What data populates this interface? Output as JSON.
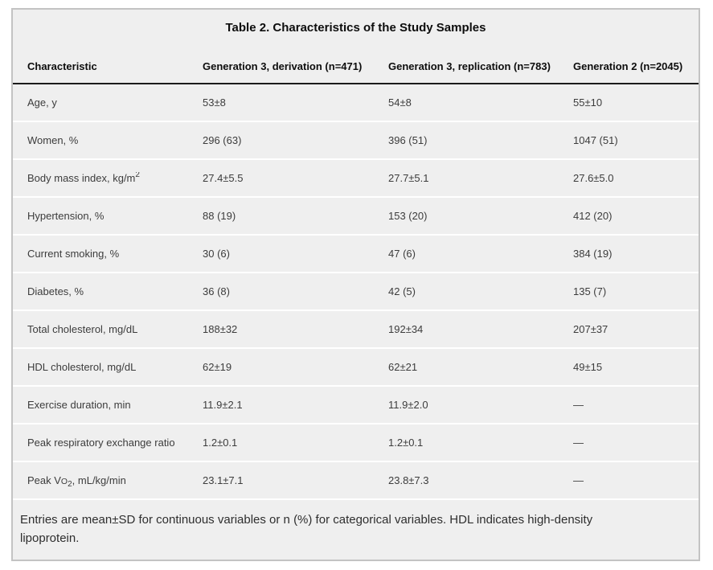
{
  "table": {
    "title": "Table 2. Characteristics of the Study Samples",
    "columns": [
      "Characteristic",
      "Generation 3, derivation (n=471)",
      "Generation 3, replication (n=783)",
      "Generation 2 (n=2045)"
    ],
    "rows": [
      {
        "label": [
          {
            "text": "Age, y"
          }
        ],
        "values": [
          "53±8",
          "54±8",
          "55±10"
        ]
      },
      {
        "label": [
          {
            "text": "Women, %"
          }
        ],
        "values": [
          "296 (63)",
          "396 (51)",
          "1047 (51)"
        ]
      },
      {
        "label": [
          {
            "text": "Body mass index, kg/m"
          },
          {
            "text": "2",
            "format": "sup"
          }
        ],
        "values": [
          "27.4±5.5",
          "27.7±5.1",
          "27.6±5.0"
        ]
      },
      {
        "label": [
          {
            "text": "Hypertension, %"
          }
        ],
        "values": [
          "88 (19)",
          "153 (20)",
          "412 (20)"
        ]
      },
      {
        "label": [
          {
            "text": "Current smoking, %"
          }
        ],
        "values": [
          "30 (6)",
          "47 (6)",
          "384 (19)"
        ]
      },
      {
        "label": [
          {
            "text": "Diabetes, %"
          }
        ],
        "values": [
          "36 (8)",
          "42 (5)",
          "135 (7)"
        ]
      },
      {
        "label": [
          {
            "text": "Total cholesterol, mg/dL"
          }
        ],
        "values": [
          "188±32",
          "192±34",
          "207±37"
        ]
      },
      {
        "label": [
          {
            "text": "HDL cholesterol, mg/dL"
          }
        ],
        "values": [
          "62±19",
          "62±21",
          "49±15"
        ]
      },
      {
        "label": [
          {
            "text": "Exercise duration, min"
          }
        ],
        "values": [
          "11.9±2.1",
          "11.9±2.0",
          "—"
        ]
      },
      {
        "label": [
          {
            "text": "Peak respiratory exchange ratio"
          }
        ],
        "values": [
          "1.2±0.1",
          "1.2±0.1",
          "—"
        ]
      },
      {
        "label": [
          {
            "text": "Peak V"
          },
          {
            "text": "o",
            "format": "smallcap"
          },
          {
            "text": "2",
            "format": "sub"
          },
          {
            "text": ", mL/kg/min"
          }
        ],
        "values": [
          "23.1±7.1",
          "23.8±7.3",
          "—"
        ]
      }
    ],
    "footnote": "Entries are mean±SD for continuous variables or n (%) for categorical variables. HDL indicates high-density lipoprotein."
  },
  "colors": {
    "card_background": "#efefef",
    "card_border": "#c3c3c3",
    "header_rule": "#1b1b1b",
    "row_separator": "#ffffff",
    "body_text": "#3c3c3c",
    "heading_text": "#0d0d0d"
  }
}
